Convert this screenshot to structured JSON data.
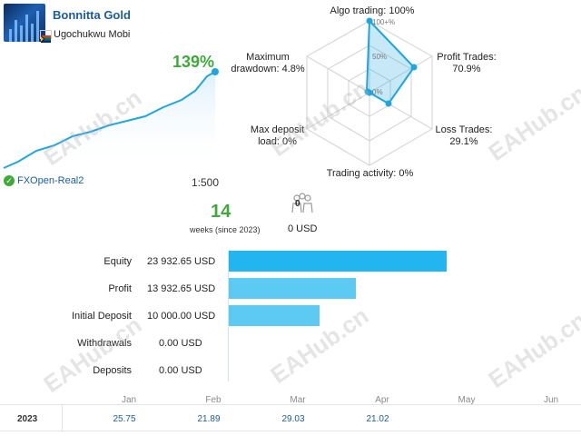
{
  "header": {
    "title": "Bonnitta Gold",
    "author": "Ugochukwu Mobi",
    "growth": "139%",
    "broker": "FXOpen-Real2",
    "leverage": "1:500"
  },
  "radar": {
    "algo_trading": "Algo trading: 100%",
    "scale_100": "100+%",
    "scale_50": "50%",
    "scale_0": "0%",
    "profit_trades_label": "Profit Trades:",
    "profit_trades_value": "70.9%",
    "loss_trades_label": "Loss Trades:",
    "loss_trades_value": "29.1%",
    "trading_activity": "Trading activity: 0%",
    "max_deposit_label": "Max deposit",
    "max_deposit_value": "load: 0%",
    "max_drawdown_label": "Maximum",
    "max_drawdown_value": "drawdown: 4.8%",
    "values_pct": {
      "algo_trading": 100,
      "profit_trades": 70.9,
      "loss_trades": 29.1,
      "trading_activity": 0,
      "max_deposit_load": 0,
      "max_drawdown": 4.8
    }
  },
  "weeks": {
    "number": "14",
    "label": "weeks (since 2023)"
  },
  "subscribers": {
    "count": "0",
    "amount": "0 USD",
    "icon": "people-icon"
  },
  "stats": [
    {
      "label": "Equity",
      "value": "23 932.65 USD",
      "fraction": 1.0
    },
    {
      "label": "Profit",
      "value": "13 932.65 USD",
      "fraction": 0.582
    },
    {
      "label": "Initial Deposit",
      "value": "10 000.00 USD",
      "fraction": 0.418
    },
    {
      "label": "Withdrawals",
      "value": "0.00 USD",
      "fraction": 0
    },
    {
      "label": "Deposits",
      "value": "0.00 USD",
      "fraction": 0
    }
  ],
  "table": {
    "months": [
      "Jan",
      "Feb",
      "Mar",
      "Apr",
      "May",
      "Jun"
    ],
    "year": "2023",
    "values": [
      "25.75",
      "21.89",
      "29.03",
      "21.02",
      "",
      ""
    ]
  },
  "watermark": "EAHub.cn",
  "colors": {
    "accent": "#1a5c9e",
    "green": "#3eaa3a",
    "radar_line": "#1ea6e0",
    "bar_dark": "#22b5ef",
    "bar_light": "#5ccaf3"
  }
}
